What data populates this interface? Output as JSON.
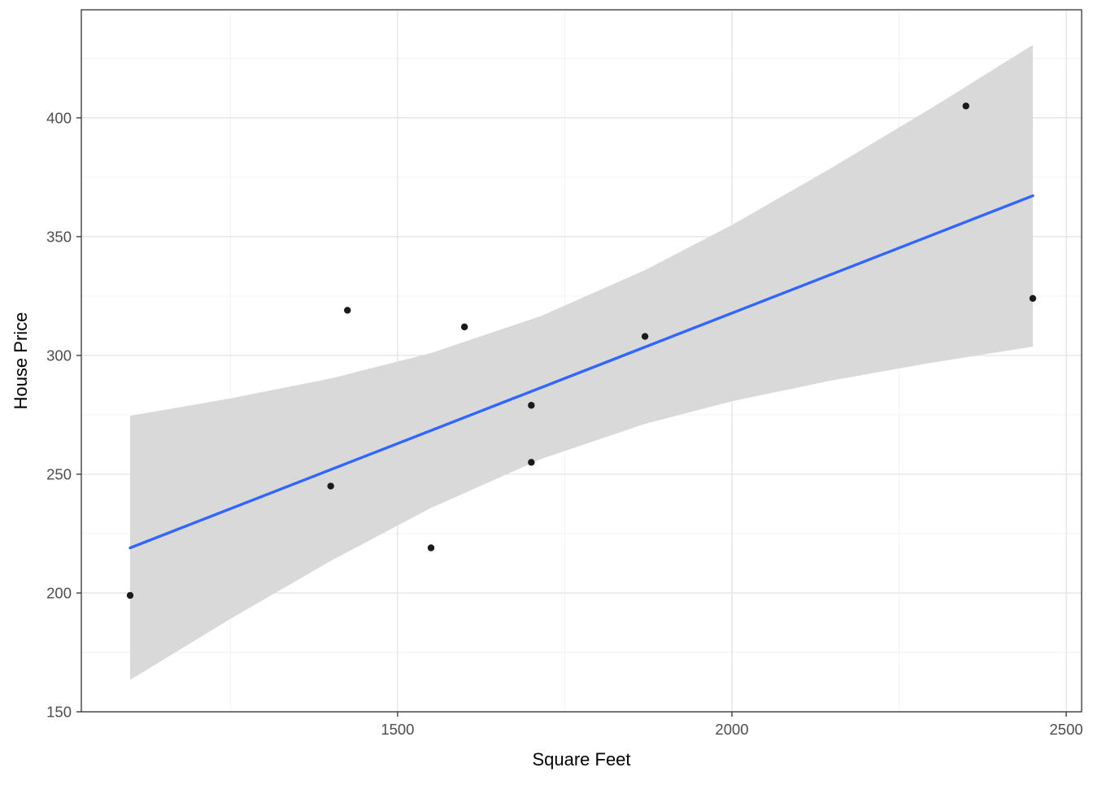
{
  "chart_data": {
    "type": "scatter",
    "title": "",
    "xlabel": "Square Feet",
    "ylabel": "House Price",
    "xlim": [
      1027,
      2523
    ],
    "ylim": [
      150,
      445.5
    ],
    "x_major_ticks": [
      1500,
      2000,
      2500
    ],
    "x_minor_ticks": [
      1250,
      1750,
      2250
    ],
    "y_major_ticks": [
      150,
      200,
      250,
      300,
      350,
      400
    ],
    "y_minor_ticks": [
      175,
      225,
      275,
      325,
      375,
      425
    ],
    "grid": true,
    "legend": "none",
    "points": [
      [
        1100,
        199
      ],
      [
        1400,
        245
      ],
      [
        1425,
        319
      ],
      [
        1550,
        219
      ],
      [
        1600,
        312
      ],
      [
        1700,
        279
      ],
      [
        1700,
        255
      ],
      [
        1870,
        308
      ],
      [
        2350,
        405
      ],
      [
        2450,
        324
      ]
    ],
    "regression_line": {
      "x": [
        1100,
        2450
      ],
      "y": [
        219.0,
        367.2
      ]
    },
    "ci_band": {
      "x": [
        1100,
        1250,
        1400,
        1550,
        1714.5,
        1870,
        2000,
        2150,
        2300,
        2450
      ],
      "lower": [
        163.4,
        189.1,
        213.5,
        235.8,
        256.4,
        271.2,
        280.7,
        289.5,
        297.0,
        303.7
      ],
      "upper": [
        274.6,
        281.9,
        290.3,
        301.0,
        316.6,
        335.9,
        354.9,
        379.1,
        404.4,
        430.7
      ]
    },
    "colors": {
      "point": "#1a1a1a",
      "line": "#3366ff",
      "band": "#d9d9d9",
      "grid_major": "#e5e5e5",
      "grid_minor": "#f1f1f1",
      "panel_border": "#333333",
      "tick_label": "#4d4d4d",
      "axis_title": "#000000",
      "background": "#ffffff"
    }
  }
}
